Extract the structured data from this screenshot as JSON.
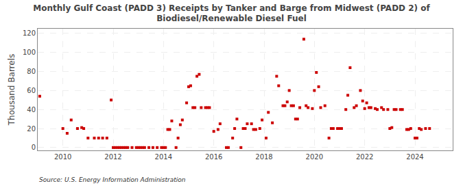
{
  "chart_data": {
    "type": "scatter",
    "title": "Monthly Gulf Coast (PADD 3) Receipts by Tanker and Barge from Midwest (PADD 2) of\nBiodiesel/Renewable Diesel Fuel",
    "ylabel": "Thousand Barrels",
    "annotation": "Source: U.S. Energy Information Administration",
    "color": "#cc0000",
    "marker": "square",
    "grid": true,
    "xlim": [
      2009.0,
      2025.5
    ],
    "ylim": [
      -3,
      125
    ],
    "xticks": [
      2010,
      2012,
      2014,
      2016,
      2018,
      2020,
      2022,
      2024
    ],
    "yticks": [
      0,
      20,
      40,
      60,
      80,
      100,
      120
    ],
    "x": [
      2009.08,
      2010.0,
      2010.17,
      2010.33,
      2010.58,
      2010.75,
      2010.83,
      2011.0,
      2011.25,
      2011.42,
      2011.58,
      2011.75,
      2011.92,
      2012.0,
      2012.08,
      2012.17,
      2012.25,
      2012.33,
      2012.42,
      2012.5,
      2012.58,
      2012.75,
      2012.92,
      2013.0,
      2013.08,
      2013.17,
      2013.25,
      2013.42,
      2013.58,
      2013.75,
      2013.92,
      2014.0,
      2014.08,
      2014.17,
      2014.25,
      2014.33,
      2014.5,
      2014.58,
      2014.67,
      2014.75,
      2014.92,
      2015.0,
      2015.08,
      2015.17,
      2015.25,
      2015.33,
      2015.42,
      2015.5,
      2015.67,
      2015.75,
      2015.83,
      2016.0,
      2016.17,
      2016.25,
      2016.5,
      2016.58,
      2016.75,
      2016.83,
      2016.92,
      2017.08,
      2017.17,
      2017.25,
      2017.33,
      2017.5,
      2017.58,
      2017.67,
      2017.83,
      2017.92,
      2018.08,
      2018.17,
      2018.33,
      2018.5,
      2018.58,
      2018.75,
      2018.83,
      2018.92,
      2019.0,
      2019.08,
      2019.17,
      2019.25,
      2019.33,
      2019.42,
      2019.58,
      2019.67,
      2019.75,
      2019.92,
      2020.0,
      2020.08,
      2020.17,
      2020.25,
      2020.42,
      2020.58,
      2020.67,
      2020.75,
      2020.92,
      2021.0,
      2021.08,
      2021.25,
      2021.33,
      2021.42,
      2021.58,
      2021.67,
      2021.83,
      2021.92,
      2022.0,
      2022.08,
      2022.17,
      2022.25,
      2022.42,
      2022.5,
      2022.67,
      2022.75,
      2022.92,
      2023.0,
      2023.08,
      2023.17,
      2023.25,
      2023.42,
      2023.5,
      2023.67,
      2023.75,
      2023.83,
      2024.0,
      2024.08,
      2024.17,
      2024.25,
      2024.42,
      2024.58
    ],
    "values": [
      54,
      20,
      15,
      29,
      20,
      21,
      20,
      10,
      10,
      10,
      10,
      10,
      50,
      0,
      0,
      0,
      0,
      0,
      0,
      0,
      0,
      0,
      0,
      0,
      0,
      0,
      0,
      0,
      0,
      0,
      0,
      0,
      0,
      19,
      19,
      28,
      0,
      10,
      24,
      29,
      47,
      64,
      65,
      42,
      42,
      75,
      77,
      42,
      42,
      42,
      42,
      17,
      19,
      25,
      0,
      0,
      10,
      20,
      30,
      0,
      20,
      20,
      25,
      25,
      19,
      19,
      20,
      29,
      10,
      37,
      26,
      75,
      65,
      44,
      44,
      48,
      60,
      44,
      44,
      30,
      30,
      42,
      114,
      44,
      42,
      41,
      60,
      79,
      64,
      42,
      44,
      10,
      20,
      20,
      20,
      20,
      20,
      40,
      55,
      84,
      42,
      44,
      60,
      49,
      41,
      47,
      42,
      42,
      41,
      40,
      42,
      40,
      40,
      20,
      21,
      40,
      40,
      40,
      40,
      19,
      19,
      20,
      10,
      10,
      20,
      19,
      20,
      20
    ]
  }
}
